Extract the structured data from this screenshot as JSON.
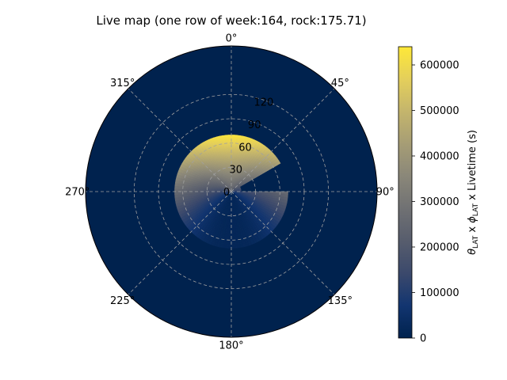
{
  "chart_data": {
    "type": "heatmap",
    "projection": "polar",
    "title": "Live map (one row of week:164, rock:175.71)",
    "theta_zero_location": "top",
    "theta_direction": "clockwise",
    "angle_ticks": [
      "0°",
      "45°",
      "90°",
      "135°",
      "180°",
      "225°",
      "270°",
      "315°"
    ],
    "radial_ticks": [
      "0",
      "30",
      "60",
      "90",
      "120"
    ],
    "radial_tick_values": [
      0,
      30,
      60,
      90,
      120
    ],
    "rlim": [
      0,
      180
    ],
    "grid": true,
    "background_value": 0,
    "data_region": {
      "r_max": 70,
      "missing_sector_theta": [
        60,
        90
      ],
      "missing_sector_r_min": 12,
      "peak_value": 630000,
      "peak_theta": 0,
      "low_value": 20000,
      "low_theta": 150
    },
    "colorbar": {
      "label": "θLAT x ϕLAT x Livetime (s)",
      "label_parts": [
        "θ",
        "LAT",
        " x ",
        "ϕ",
        "LAT",
        " x Livetime (s)"
      ],
      "range": [
        0,
        640000
      ],
      "ticks": [
        "0",
        "100000",
        "200000",
        "300000",
        "400000",
        "500000",
        "600000"
      ],
      "tick_values": [
        0,
        100000,
        200000,
        300000,
        400000,
        500000,
        600000
      ],
      "colormap": "cividis"
    }
  },
  "colors": {
    "background_dark": "#00224e",
    "grid": "#a0a0a0",
    "cmap_stops": [
      "#00224e",
      "#123570",
      "#3b496c",
      "#575d6d",
      "#707173",
      "#8a8779",
      "#a69d75",
      "#c4b56c",
      "#e4cf5b",
      "#fee838"
    ]
  }
}
